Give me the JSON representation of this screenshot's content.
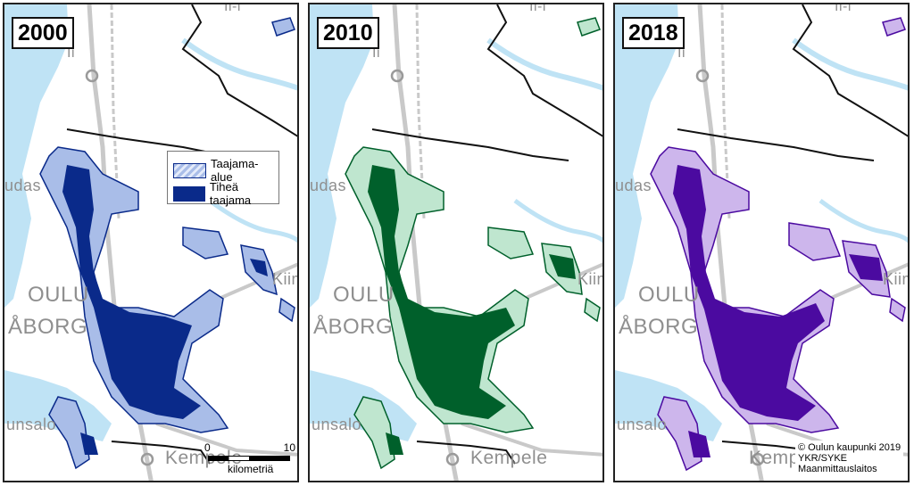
{
  "panels": [
    {
      "year": "2000",
      "dense_color": "#0a2a8a",
      "area_color": "#a9bde8"
    },
    {
      "year": "2010",
      "dense_color": "#00602b",
      "area_color": "#bfe6cf"
    },
    {
      "year": "2018",
      "dense_color": "#4b0aa0",
      "area_color": "#cdb6ec"
    }
  ],
  "places": {
    "ii": "Ii",
    "ii_top": "Ii-i",
    "haukipudas": "udas",
    "oulu": "OULU",
    "uleaborg": "ÅBORG",
    "kiiminki": "Kiim",
    "haukiputaan_saari": "unsalo",
    "kempele": "Kempele"
  },
  "legend": {
    "taajama_alue": "Taajama-alue",
    "tihea_taajama": "Tiheä taajama"
  },
  "scale": {
    "start": "0",
    "end": "10",
    "unit": "kilometriä"
  },
  "credits": [
    "© Oulun kaupunki 2019",
    "YKR/SYKE",
    "Maanmittauslaitos"
  ],
  "colors": {
    "water": "#bfe3f5",
    "road": "#c9c9c9",
    "boundary": "#111111"
  }
}
